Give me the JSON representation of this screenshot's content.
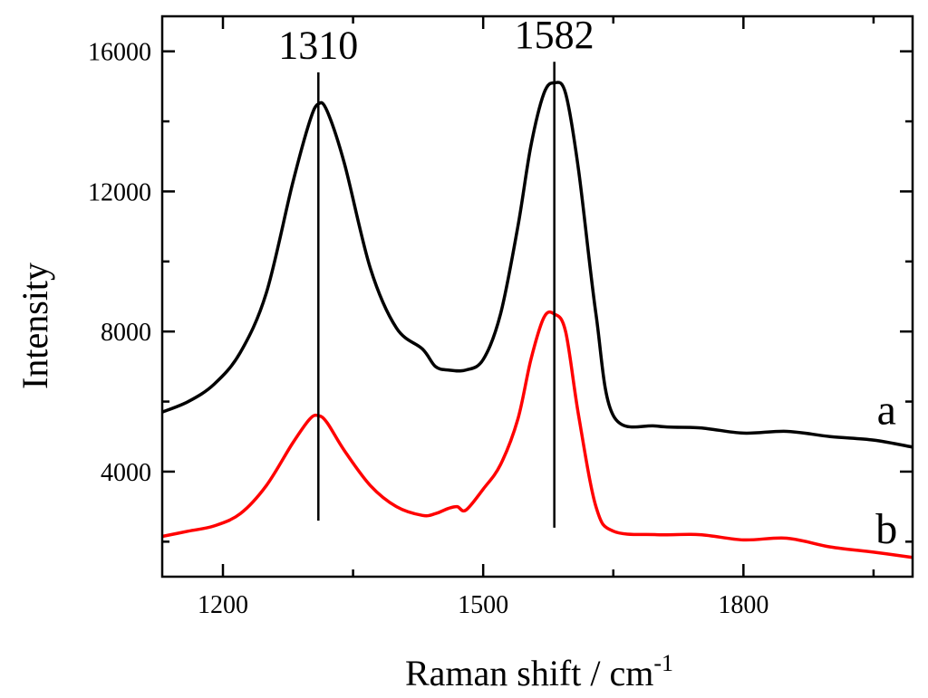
{
  "chart_data": {
    "type": "line",
    "title": "",
    "xlabel": "Raman shift / cm",
    "xlabel_superscript": "-1",
    "ylabel": "Intensity",
    "xlim": [
      1130,
      1995
    ],
    "ylim": [
      1000,
      17000
    ],
    "x_ticks": [
      1200,
      1500,
      1800
    ],
    "x_tick_labels": [
      "1200",
      "1500",
      "1800"
    ],
    "x_minor_ticks": [
      1350,
      1650,
      1950
    ],
    "y_ticks": [
      4000,
      8000,
      12000,
      16000
    ],
    "y_tick_labels": [
      "4000",
      "8000",
      "12000",
      "16000"
    ],
    "y_minor_ticks": [
      2000,
      6000,
      10000,
      14000
    ],
    "grid": false,
    "legend": "none",
    "series": [
      {
        "name": "a",
        "color": "#000000",
        "x": [
          1130,
          1160,
          1190,
          1220,
          1250,
          1280,
          1300,
          1310,
          1320,
          1340,
          1370,
          1400,
          1430,
          1445,
          1460,
          1480,
          1500,
          1520,
          1540,
          1555,
          1570,
          1582,
          1595,
          1610,
          1630,
          1650,
          1700,
          1750,
          1800,
          1850,
          1900,
          1950,
          1995
        ],
        "y": [
          5700,
          6000,
          6500,
          7400,
          9100,
          12200,
          14000,
          14500,
          14300,
          12800,
          9800,
          8100,
          7500,
          7000,
          6900,
          6900,
          7200,
          8500,
          11000,
          13300,
          14800,
          15100,
          14800,
          12600,
          8500,
          5600,
          5300,
          5250,
          5100,
          5150,
          5000,
          4900,
          4700
        ]
      },
      {
        "name": "b",
        "color": "#ff0000",
        "x": [
          1130,
          1160,
          1190,
          1220,
          1250,
          1280,
          1300,
          1310,
          1320,
          1340,
          1370,
          1400,
          1430,
          1445,
          1460,
          1470,
          1480,
          1500,
          1520,
          1540,
          1555,
          1570,
          1582,
          1595,
          1610,
          1630,
          1650,
          1700,
          1750,
          1800,
          1850,
          1900,
          1950,
          1995
        ],
        "y": [
          2150,
          2300,
          2450,
          2800,
          3600,
          4800,
          5500,
          5600,
          5400,
          4600,
          3600,
          3000,
          2750,
          2800,
          2950,
          3000,
          2900,
          3500,
          4200,
          5500,
          7200,
          8400,
          8500,
          8000,
          5600,
          3000,
          2300,
          2200,
          2200,
          2050,
          2100,
          1850,
          1700,
          1550
        ]
      }
    ],
    "vertical_lines": [
      {
        "x": 1310,
        "y_from": 2600,
        "y_to": 15400
      },
      {
        "x": 1582,
        "y_from": 2400,
        "y_to": 15700
      }
    ],
    "annotations": [
      {
        "text": "1310",
        "x": 1310,
        "y": 15800
      },
      {
        "text": "1582",
        "x": 1582,
        "y": 16100
      },
      {
        "text": "a",
        "x": 1965,
        "y": 5350
      },
      {
        "text": "b",
        "x": 1965,
        "y": 1950
      }
    ]
  }
}
